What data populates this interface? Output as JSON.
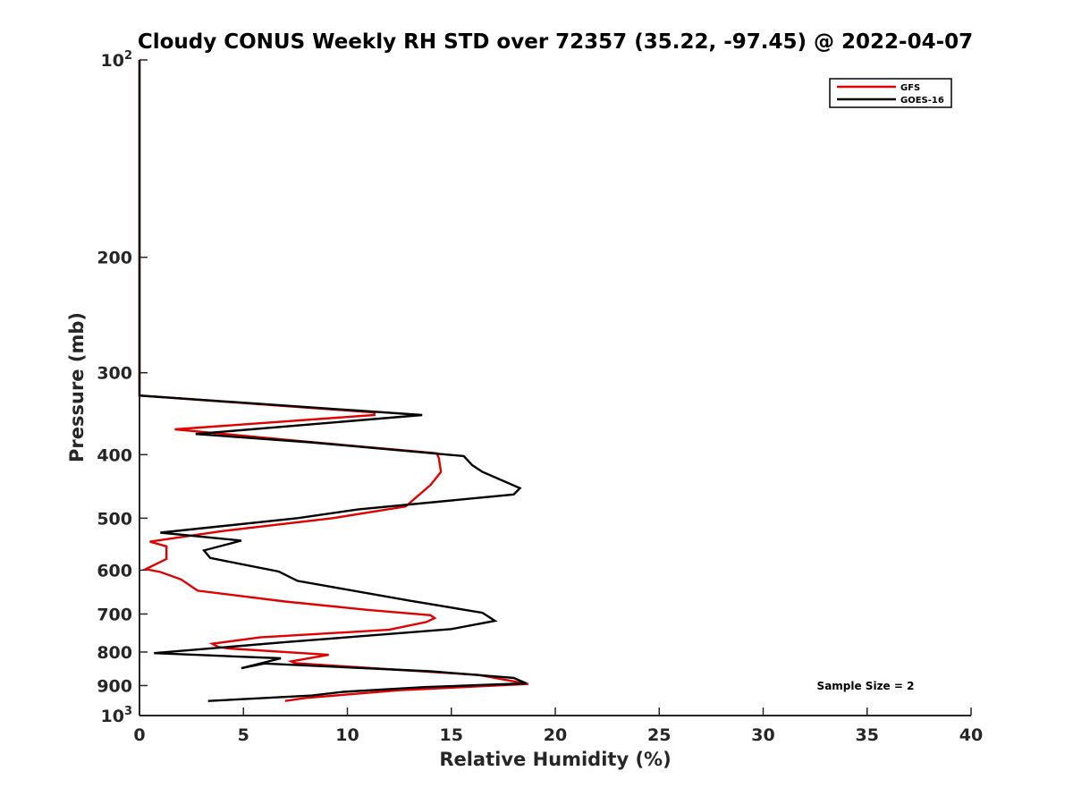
{
  "chart_data": {
    "type": "line",
    "title": "Cloudy CONUS Weekly RH STD over 72357 (35.22, -97.45) @ 2022-04-07",
    "xlabel": "Relative Humidity (%)",
    "ylabel": "Pressure (mb)",
    "xlim": [
      0,
      40
    ],
    "ylim": [
      100,
      1000
    ],
    "y_scale": "log",
    "y_reversed": true,
    "grid": false,
    "legend_position": "top-right",
    "x_ticks": [
      "0",
      "5",
      "10",
      "15",
      "20",
      "25",
      "30",
      "35",
      "40"
    ],
    "x_tick_values": [
      0,
      5,
      10,
      15,
      20,
      25,
      30,
      35,
      40
    ],
    "y_ticks": [
      {
        "value": 100,
        "base": "10",
        "exp": "2"
      },
      {
        "value": 200,
        "label": "200"
      },
      {
        "value": 300,
        "label": "300"
      },
      {
        "value": 400,
        "label": "400"
      },
      {
        "value": 500,
        "label": "500"
      },
      {
        "value": 600,
        "label": "600"
      },
      {
        "value": 700,
        "label": "700"
      },
      {
        "value": 800,
        "label": "800"
      },
      {
        "value": 900,
        "label": "900"
      },
      {
        "value": 1000,
        "base": "10",
        "exp": "3"
      }
    ],
    "annotation": "Sample Size = 2",
    "series": [
      {
        "name": "GFS",
        "color": "#e00000",
        "points": [
          [
            0,
            100
          ],
          [
            0,
            325
          ],
          [
            11.3,
            345
          ],
          [
            11.3,
            348
          ],
          [
            1.7,
            366
          ],
          [
            8.0,
            382
          ],
          [
            14.3,
            398
          ],
          [
            14.4,
            405
          ],
          [
            14.5,
            425
          ],
          [
            14.0,
            445
          ],
          [
            12.8,
            480
          ],
          [
            9.3,
            500
          ],
          [
            4.0,
            523
          ],
          [
            0.5,
            543
          ],
          [
            1.3,
            552
          ],
          [
            1.3,
            577
          ],
          [
            0.3,
            598
          ],
          [
            1.0,
            604
          ],
          [
            2.0,
            620
          ],
          [
            2.8,
            645
          ],
          [
            7.0,
            670
          ],
          [
            11.0,
            690
          ],
          [
            14.0,
            703
          ],
          [
            14.2,
            710
          ],
          [
            13.8,
            720
          ],
          [
            12.0,
            740
          ],
          [
            5.8,
            760
          ],
          [
            3.5,
            777
          ],
          [
            3.8,
            786
          ],
          [
            4.3,
            790
          ],
          [
            9.1,
            808
          ],
          [
            7.3,
            827
          ],
          [
            7.5,
            832
          ],
          [
            16.3,
            867
          ],
          [
            18.7,
            895
          ],
          [
            12.5,
            915
          ],
          [
            8.0,
            940
          ],
          [
            7.0,
            950
          ]
        ]
      },
      {
        "name": "GOES-16",
        "color": "#000000",
        "points": [
          [
            0,
            100
          ],
          [
            0,
            325
          ],
          [
            13.6,
            348
          ],
          [
            2.7,
            372
          ],
          [
            8.2,
            383
          ],
          [
            15.6,
            402
          ],
          [
            16.0,
            415
          ],
          [
            16.5,
            425
          ],
          [
            18.3,
            450
          ],
          [
            18.0,
            460
          ],
          [
            10.5,
            485
          ],
          [
            7.6,
            500
          ],
          [
            1.0,
            526
          ],
          [
            4.9,
            541
          ],
          [
            3.1,
            560
          ],
          [
            3.4,
            575
          ],
          [
            6.7,
            603
          ],
          [
            7.6,
            623
          ],
          [
            13.0,
            668
          ],
          [
            16.5,
            697
          ],
          [
            17.1,
            717
          ],
          [
            15.0,
            738
          ],
          [
            8.8,
            765
          ],
          [
            7.2,
            772
          ],
          [
            0.7,
            803
          ],
          [
            6.8,
            818
          ],
          [
            4.9,
            847
          ],
          [
            6.0,
            833
          ],
          [
            14.0,
            856
          ],
          [
            18.0,
            876
          ],
          [
            18.6,
            893
          ],
          [
            13.7,
            905
          ],
          [
            9.8,
            920
          ],
          [
            8.3,
            932
          ],
          [
            3.3,
            950
          ]
        ]
      }
    ]
  }
}
